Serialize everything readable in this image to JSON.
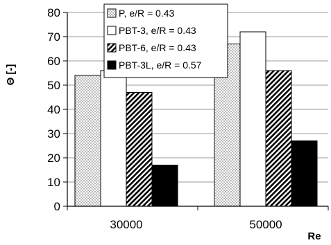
{
  "chart_data": {
    "type": "bar",
    "title": "",
    "xlabel": "Re",
    "ylabel": "Θ [-]",
    "categories": [
      "30000",
      "50000"
    ],
    "ylim": [
      0,
      80
    ],
    "yticks": [
      0,
      10,
      20,
      30,
      40,
      50,
      60,
      70,
      80
    ],
    "grid": true,
    "legend_position": "top",
    "series": [
      {
        "name": "P, e/R = 0.43",
        "values": [
          54,
          67
        ],
        "fill": "dots"
      },
      {
        "name": "PBT-3, e/R = 0.43",
        "values": [
          56,
          72
        ],
        "fill": "white"
      },
      {
        "name": "PBT-6, e/R = 0.43",
        "values": [
          47,
          56
        ],
        "fill": "hatch"
      },
      {
        "name": "PBT-3L, e/R = 0.57",
        "values": [
          17,
          27
        ],
        "fill": "black"
      }
    ]
  }
}
